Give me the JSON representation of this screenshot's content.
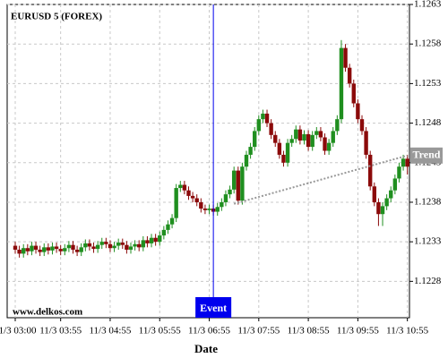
{
  "chart_data": {
    "type": "candlestick",
    "title": "EURUSD 5 (FOREX)",
    "watermark": "www.delkos.com",
    "x_label": "Date",
    "categories": [
      "11/3 03:00",
      null,
      null,
      null,
      null,
      null,
      null,
      null,
      null,
      null,
      null,
      "11/3 03:55",
      null,
      null,
      null,
      null,
      null,
      null,
      null,
      null,
      null,
      null,
      null,
      "11/3 04:55",
      null,
      null,
      null,
      null,
      null,
      null,
      null,
      null,
      null,
      null,
      null,
      "11/3 05:55",
      null,
      null,
      null,
      null,
      null,
      null,
      null,
      null,
      null,
      null,
      null,
      "11/3 06:55",
      null,
      null,
      null,
      null,
      null,
      null,
      null,
      null,
      null,
      null,
      null,
      "11/3 07:55",
      null,
      null,
      null,
      null,
      null,
      null,
      null,
      null,
      null,
      null,
      null,
      "11/3 08:55",
      null,
      null,
      null,
      null,
      null,
      null,
      null,
      null,
      null,
      null,
      null,
      "11/3 09:55",
      null,
      null,
      null,
      null,
      null,
      null,
      null,
      null,
      null,
      null,
      null,
      "11/3 10:55"
    ],
    "open": [
      1.12325,
      1.1232,
      1.12315,
      1.12322,
      1.12318,
      1.12325,
      1.1232,
      1.12317,
      1.12323,
      1.12319,
      1.12324,
      1.12321,
      1.12318,
      1.12322,
      1.12326,
      1.1232,
      1.12317,
      1.12323,
      1.12328,
      1.12324,
      1.12321,
      1.12326,
      1.1233,
      1.12327,
      1.12322,
      1.12325,
      1.12329,
      1.12326,
      1.1232,
      1.12324,
      1.12327,
      1.12323,
      1.12332,
      1.12328,
      1.12335,
      1.1233,
      1.12338,
      1.12345,
      1.12352,
      1.1236,
      1.12398,
      1.12402,
      1.12395,
      1.12388,
      1.12385,
      1.1238,
      1.12372,
      1.1237,
      1.12372,
      1.12368,
      1.12374,
      1.1238,
      1.1239,
      1.12396,
      1.1242,
      1.12382,
      1.12425,
      1.1244,
      1.1245,
      1.1247,
      1.12485,
      1.12492,
      1.1248,
      1.12465,
      1.12455,
      1.1244,
      1.1243,
      1.12455,
      1.1246,
      1.12472,
      1.12458,
      1.12466,
      1.1245,
      1.12465,
      1.1247,
      1.12462,
      1.12445,
      1.12455,
      1.1247,
      1.12485,
      1.12575,
      1.1255,
      1.1253,
      1.12505,
      1.12485,
      1.1247,
      1.1244,
      1.124,
      1.1238,
      1.12365,
      1.12375,
      1.12385,
      1.12395,
      1.1241,
      1.12425,
      1.12435
    ],
    "high": [
      1.1233,
      1.12325,
      1.12327,
      1.12327,
      1.1233,
      1.1233,
      1.12325,
      1.12328,
      1.12328,
      1.12329,
      1.12329,
      1.12326,
      1.12327,
      1.12331,
      1.12331,
      1.12325,
      1.12328,
      1.12333,
      1.12333,
      1.12329,
      1.12331,
      1.12335,
      1.12335,
      1.12332,
      1.1233,
      1.12334,
      1.12334,
      1.12331,
      1.12329,
      1.12332,
      1.12332,
      1.12337,
      1.12337,
      1.1234,
      1.1234,
      1.12343,
      1.1235,
      1.12357,
      1.12365,
      1.12403,
      1.12407,
      1.12407,
      1.124,
      1.12393,
      1.1239,
      1.12385,
      1.12377,
      1.12377,
      1.12377,
      1.12379,
      1.12385,
      1.12395,
      1.12401,
      1.12425,
      1.12425,
      1.1243,
      1.12445,
      1.12455,
      1.12475,
      1.1249,
      1.12497,
      1.12497,
      1.12485,
      1.1247,
      1.1246,
      1.12445,
      1.1246,
      1.12465,
      1.12477,
      1.12477,
      1.12471,
      1.12471,
      1.1247,
      1.12475,
      1.12475,
      1.12467,
      1.1246,
      1.12475,
      1.1249,
      1.12585,
      1.1258,
      1.12555,
      1.12535,
      1.1251,
      1.1249,
      1.12475,
      1.12445,
      1.12405,
      1.12385,
      1.1238,
      1.1239,
      1.124,
      1.12415,
      1.1243,
      1.1244,
      1.1244
    ],
    "low": [
      1.12315,
      1.1231,
      1.1231,
      1.12313,
      1.12313,
      1.12315,
      1.12312,
      1.12312,
      1.12314,
      1.12314,
      1.12316,
      1.12313,
      1.12313,
      1.12317,
      1.12315,
      1.12312,
      1.12312,
      1.12318,
      1.12319,
      1.12316,
      1.12316,
      1.12321,
      1.12322,
      1.12317,
      1.12317,
      1.1232,
      1.12321,
      1.12315,
      1.12315,
      1.12319,
      1.12318,
      1.12318,
      1.12323,
      1.12323,
      1.12325,
      1.12325,
      1.12333,
      1.1234,
      1.12347,
      1.12355,
      1.12393,
      1.1239,
      1.12383,
      1.1238,
      1.12375,
      1.12367,
      1.12365,
      1.12365,
      1.12363,
      1.12363,
      1.12369,
      1.12375,
      1.12385,
      1.12391,
      1.12377,
      1.12377,
      1.1242,
      1.12435,
      1.12445,
      1.12465,
      1.1248,
      1.12475,
      1.1246,
      1.1245,
      1.12435,
      1.12425,
      1.12425,
      1.1245,
      1.12455,
      1.12453,
      1.12453,
      1.12445,
      1.12445,
      1.1246,
      1.12457,
      1.1244,
      1.1244,
      1.1245,
      1.12465,
      1.1248,
      1.12545,
      1.12525,
      1.125,
      1.1248,
      1.12465,
      1.12435,
      1.12395,
      1.12375,
      1.1235,
      1.1235,
      1.1237,
      1.1238,
      1.1239,
      1.12405,
      1.1242,
      1.12415
    ],
    "close": [
      1.1232,
      1.12315,
      1.12322,
      1.12318,
      1.12325,
      1.1232,
      1.12317,
      1.12323,
      1.12319,
      1.12324,
      1.12321,
      1.12318,
      1.12322,
      1.12326,
      1.1232,
      1.12317,
      1.12323,
      1.12328,
      1.12324,
      1.12321,
      1.12326,
      1.1233,
      1.12327,
      1.12322,
      1.12325,
      1.12329,
      1.12326,
      1.1232,
      1.12324,
      1.12327,
      1.12323,
      1.12332,
      1.12328,
      1.12335,
      1.1233,
      1.12338,
      1.12345,
      1.12352,
      1.1236,
      1.12398,
      1.12402,
      1.12395,
      1.12388,
      1.12385,
      1.1238,
      1.12372,
      1.1237,
      1.12372,
      1.12368,
      1.12374,
      1.1238,
      1.1239,
      1.12396,
      1.1242,
      1.12382,
      1.12425,
      1.1244,
      1.1245,
      1.1247,
      1.12485,
      1.12492,
      1.1248,
      1.12465,
      1.12455,
      1.1244,
      1.1243,
      1.12455,
      1.1246,
      1.12472,
      1.12458,
      1.12466,
      1.1245,
      1.12465,
      1.1247,
      1.12462,
      1.12445,
      1.12455,
      1.1247,
      1.12485,
      1.12575,
      1.1255,
      1.1253,
      1.12505,
      1.12485,
      1.1247,
      1.1244,
      1.124,
      1.1238,
      1.12365,
      1.12375,
      1.12385,
      1.12395,
      1.1241,
      1.12425,
      1.12435,
      1.12425
    ],
    "up_color": "#1f8f1f",
    "down_color": "#8b0a0a",
    "ylim": [
      1.12234,
      1.1263
    ],
    "yticks": [
      1.1228,
      1.1233,
      1.1238,
      1.1243,
      1.1248,
      1.1253,
      1.1258,
      1.1263
    ],
    "grid": true,
    "event": {
      "label": "Event",
      "category_index": 48,
      "color": "#0000ee"
    },
    "trend": {
      "label": "Trend",
      "x": [
        53,
        95
      ],
      "y": [
        1.12378,
        1.12439
      ],
      "color": "#999999"
    }
  }
}
